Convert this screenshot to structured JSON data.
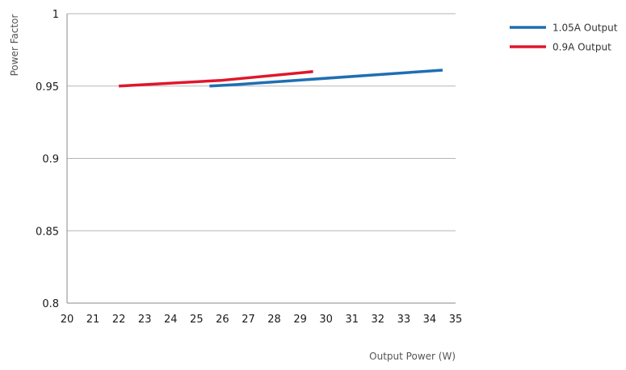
{
  "chart_data": {
    "type": "line",
    "title": "",
    "xlabel": "Output Power (W)",
    "ylabel": "Power Factor",
    "xlim": [
      20,
      35
    ],
    "ylim": [
      0.8,
      1
    ],
    "x_ticks": [
      "20",
      "21",
      "22",
      "23",
      "24",
      "25",
      "26",
      "27",
      "28",
      "29",
      "30",
      "31",
      "32",
      "33",
      "34",
      "35"
    ],
    "y_ticks": [
      "1",
      "0.95",
      "0.9",
      "0.85",
      "0.8"
    ],
    "grid": "horizontal",
    "legend_position": "top-right",
    "series": [
      {
        "name": "1.05A Output",
        "color": "#1f6fb2",
        "x": [
          25.5,
          26.5,
          34.5
        ],
        "y": [
          0.95,
          0.951,
          0.961
        ]
      },
      {
        "name": "0.9A Output",
        "color": "#e0162b",
        "x": [
          22,
          26,
          29.5
        ],
        "y": [
          0.95,
          0.954,
          0.96
        ]
      }
    ]
  }
}
